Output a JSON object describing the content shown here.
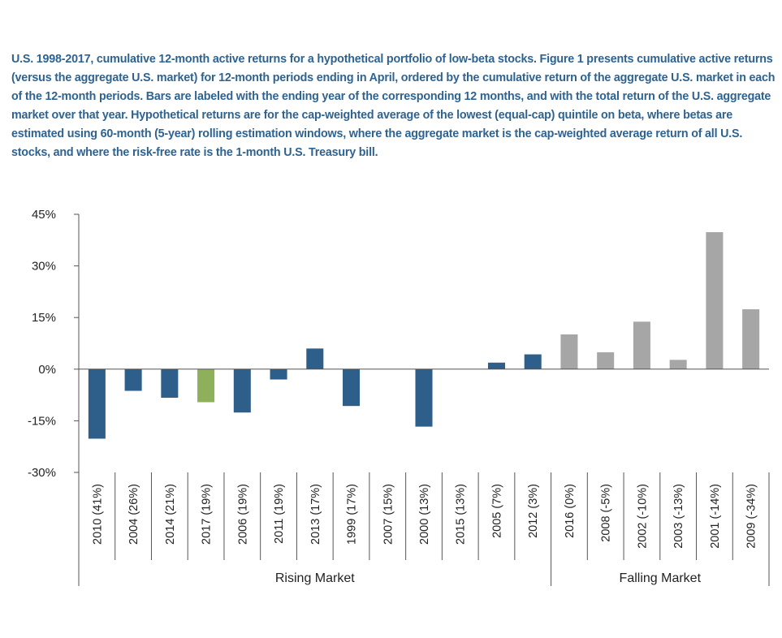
{
  "caption": "U.S. 1998-2017, cumulative 12-month active returns for a hypothetical portfolio of low-beta stocks. Figure 1 presents cumulative active returns (versus the aggregate U.S. market) for 12-month periods ending in April, ordered by the cumulative return of the aggregate U.S. market in each of the 12-month periods. Bars are labeled with the ending year of the corresponding 12 months, and with the total return of the U.S. aggregate market over that year. Hypothetical returns are for the cap-weighted average of the lowest (equal-cap) quintile on beta, where betas are estimated using 60-month (5-year) rolling estimation windows, where the aggregate market is the cap-weighted average return of all U.S. stocks, and where the risk-free rate is the 1-month U.S. Treasury bill.",
  "chart_data": {
    "type": "bar",
    "title": "",
    "xlabel": "",
    "ylabel": "",
    "ylim": [
      -30,
      45
    ],
    "yticks": [
      45,
      30,
      15,
      0,
      -15,
      -30
    ],
    "ytick_labels": [
      "45%",
      "30%",
      "15%",
      "0%",
      "-15%",
      "-30%"
    ],
    "grid": false,
    "categories": [
      "2010 (41%)",
      "2004 (26%)",
      "2014 (21%)",
      "2017 (19%)",
      "2006 (19%)",
      "2011 (19%)",
      "2013 (17%)",
      "1999 (17%)",
      "2007 (15%)",
      "2000 (13%)",
      "2015 (13%)",
      "2005 (7%)",
      "2012 (3%)",
      "2016 (0%)",
      "2008 (-5%)",
      "2002 (-10%)",
      "2003 (-13%)",
      "2001 (-14%)",
      "2009 (-34%)"
    ],
    "values": [
      -20.2,
      -6.3,
      -8.3,
      -9.6,
      -12.6,
      -3.0,
      6.0,
      -10.7,
      0.0,
      -16.7,
      0.0,
      1.9,
      4.3,
      10.1,
      4.9,
      13.8,
      2.7,
      39.8,
      17.4
    ],
    "bar_colors": [
      "#2e5f8a",
      "#2e5f8a",
      "#2e5f8a",
      "#8fb05a",
      "#2e5f8a",
      "#2e5f8a",
      "#2e5f8a",
      "#2e5f8a",
      "#2e5f8a",
      "#2e5f8a",
      "#2e5f8a",
      "#2e5f8a",
      "#2e5f8a",
      "#a6a6a6",
      "#a6a6a6",
      "#a6a6a6",
      "#a6a6a6",
      "#a6a6a6",
      "#a6a6a6"
    ],
    "groups": [
      {
        "label": "Rising Market",
        "start": 0,
        "end": 12
      },
      {
        "label": "Falling Market",
        "start": 13,
        "end": 18
      }
    ]
  }
}
